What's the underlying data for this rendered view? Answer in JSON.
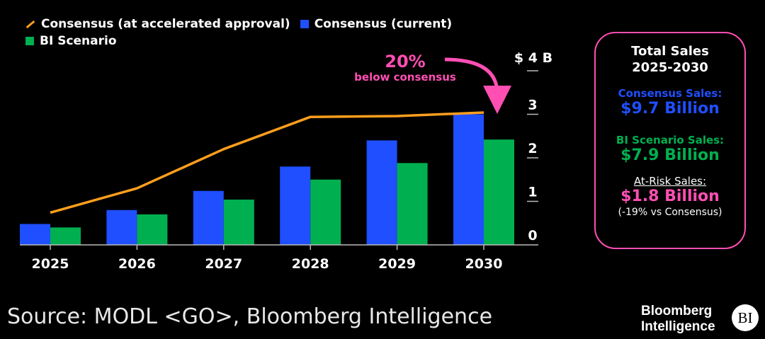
{
  "colors": {
    "consensus_line": "#ff9f1c",
    "consensus_bar": "#1f4fff",
    "bi_bar": "#00b050",
    "accent": "#ff4fb3",
    "axis": "#bbbbbb"
  },
  "legend": {
    "line_label": "Consensus (at accelerated approval)",
    "consensus_label": "Consensus (current)",
    "bi_label": "BI Scenario"
  },
  "annotation": {
    "pct": "20%",
    "text": "below consensus"
  },
  "panel": {
    "title_line1": "Total Sales",
    "title_line2": "2025-2030",
    "consensus_label": "Consensus Sales:",
    "consensus_value": "$9.7 Billion",
    "bi_label": "BI Scenario Sales:",
    "bi_value": "$7.9 Billion",
    "risk_label": "At-Risk Sales:",
    "risk_value": "$1.8 Billion",
    "risk_note": "(-19% vs Consensus)"
  },
  "footer": {
    "source": "Source: MODL <GO>, Bloomberg Intelligence",
    "brand_line1": "Bloomberg",
    "brand_line2": "Intelligence",
    "brand_badge": "BI"
  },
  "chart_data": {
    "type": "bar",
    "categories": [
      "2025",
      "2026",
      "2027",
      "2028",
      "2029",
      "2030"
    ],
    "series": [
      {
        "name": "Consensus (current)",
        "type": "bar",
        "values": [
          0.48,
          0.8,
          1.24,
          1.8,
          2.4,
          3.0
        ]
      },
      {
        "name": "BI Scenario",
        "type": "bar",
        "values": [
          0.4,
          0.7,
          1.04,
          1.5,
          1.88,
          2.42
        ]
      },
      {
        "name": "Consensus (at accelerated approval)",
        "type": "line",
        "values": [
          0.74,
          1.3,
          2.2,
          2.94,
          2.96,
          3.04
        ]
      }
    ],
    "y_tick_labels": [
      "0",
      "1",
      "2",
      "3",
      "$ 4 B"
    ],
    "y_ticks": [
      0,
      1,
      2,
      3,
      4
    ],
    "ylim": [
      0,
      4
    ],
    "title": "",
    "xlabel": "",
    "ylabel": ""
  }
}
